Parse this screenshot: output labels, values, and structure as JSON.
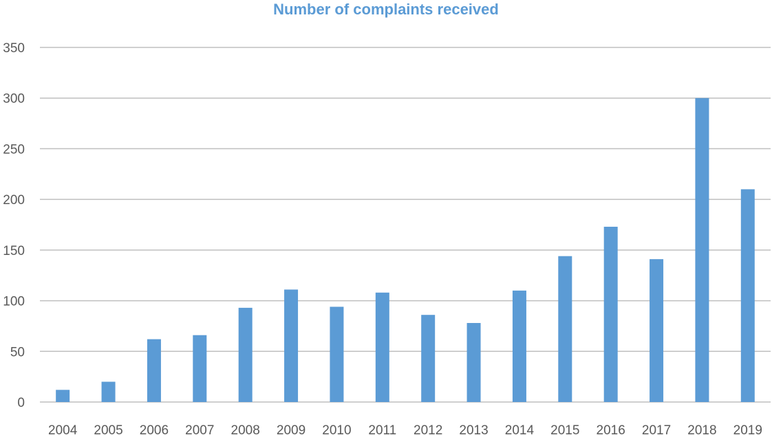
{
  "chart_data": {
    "type": "bar",
    "title": "Number of complaints received",
    "categories": [
      "2004",
      "2005",
      "2006",
      "2007",
      "2008",
      "2009",
      "2010",
      "2011",
      "2012",
      "2013",
      "2014",
      "2015",
      "2016",
      "2017",
      "2018",
      "2019"
    ],
    "values": [
      12,
      20,
      62,
      66,
      93,
      111,
      94,
      108,
      86,
      78,
      110,
      144,
      173,
      141,
      300,
      210
    ],
    "ylim": [
      0,
      350
    ],
    "yticks": [
      "0",
      "50",
      "100",
      "150",
      "200",
      "250",
      "300",
      "350"
    ],
    "xlabel": "",
    "ylabel": "",
    "grid": true,
    "legend": "none",
    "colors": {
      "bar": "#5B9BD5",
      "title": "#5B9BD5",
      "grid": "#BFBFBF",
      "tick_text": "#595959"
    }
  }
}
